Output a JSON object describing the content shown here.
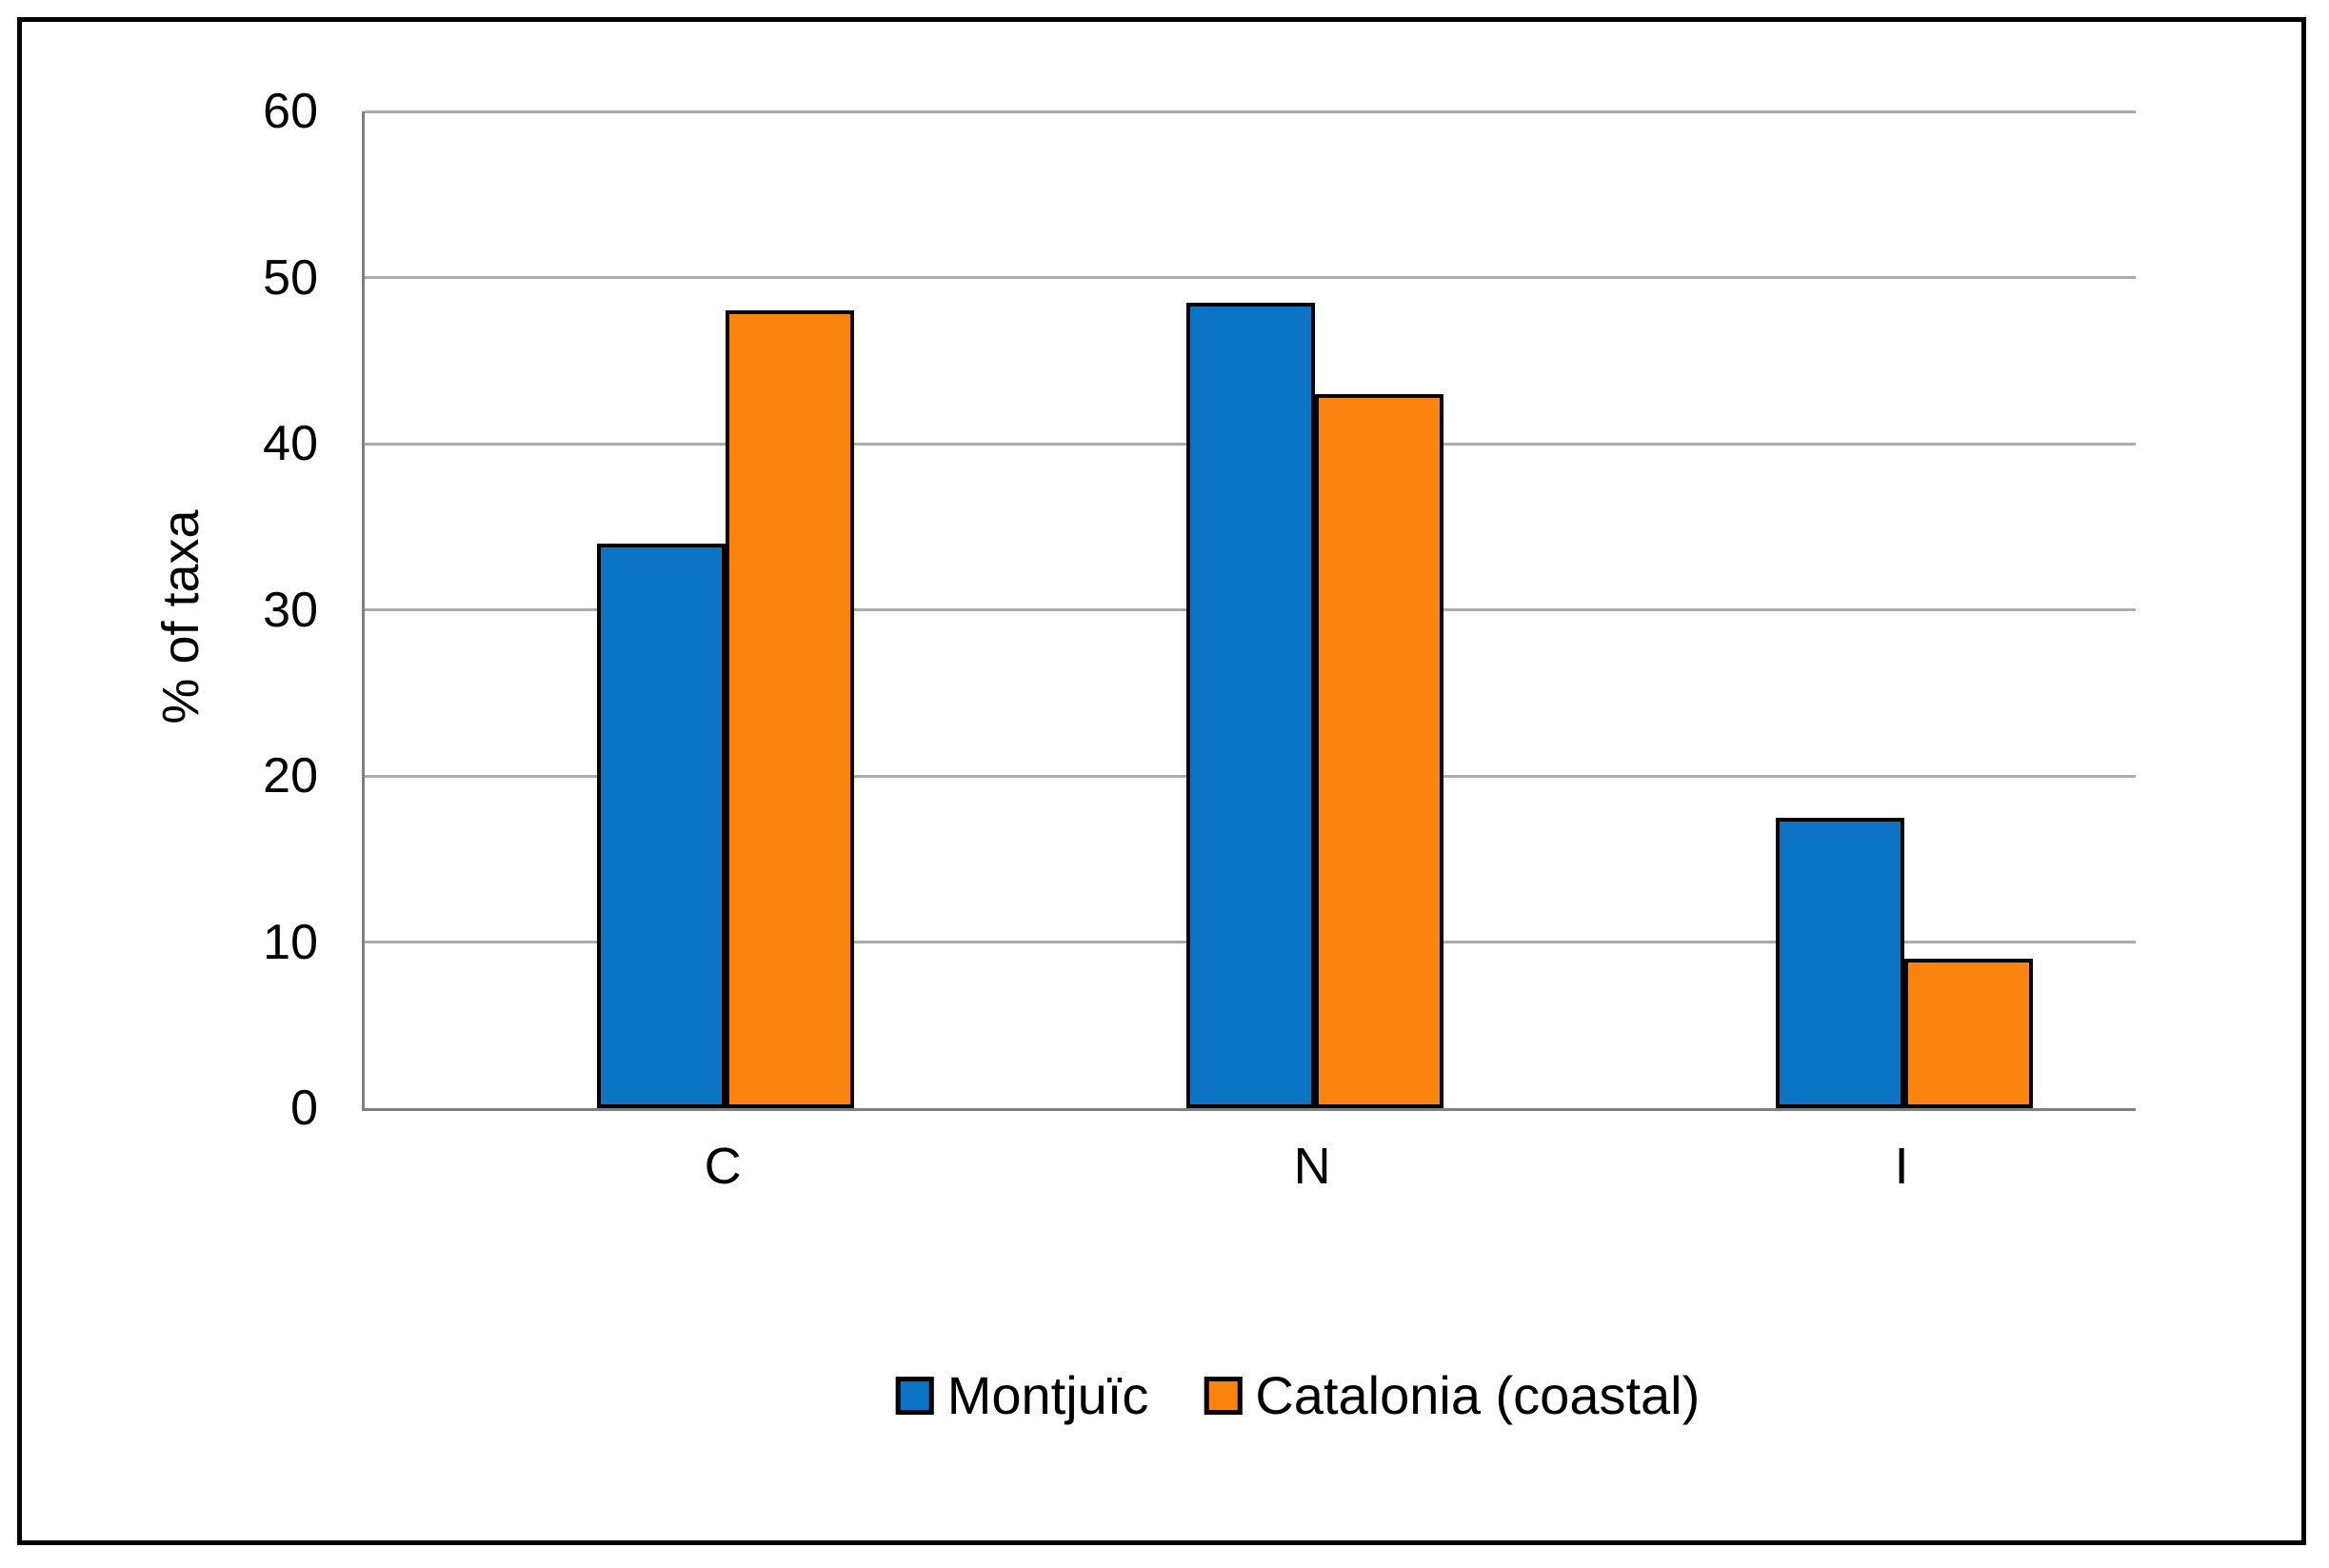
{
  "chart_data": {
    "type": "bar",
    "title": "",
    "categories": [
      "C",
      "N",
      "I"
    ],
    "series": [
      {
        "name": "Montjuïc",
        "color": "#0B74C4",
        "values": [
          34,
          48.5,
          17.5
        ]
      },
      {
        "name": "Catalonia (coastal)",
        "color": "#FB830F",
        "values": [
          48,
          43,
          9
        ]
      }
    ],
    "xlabel": "",
    "ylabel": "% of taxa",
    "ylim": [
      0,
      60
    ],
    "yticks": [
      0,
      10,
      20,
      30,
      40,
      50,
      60
    ],
    "grid": "horizontal-gray",
    "gridline_color": "#ACACAC",
    "axis_line_color": "#808080",
    "bar_outline_color": "#000000",
    "legend_position": "bottom-center",
    "legend": [
      "Montjuïc",
      "Catalonia (coastal)"
    ]
  }
}
